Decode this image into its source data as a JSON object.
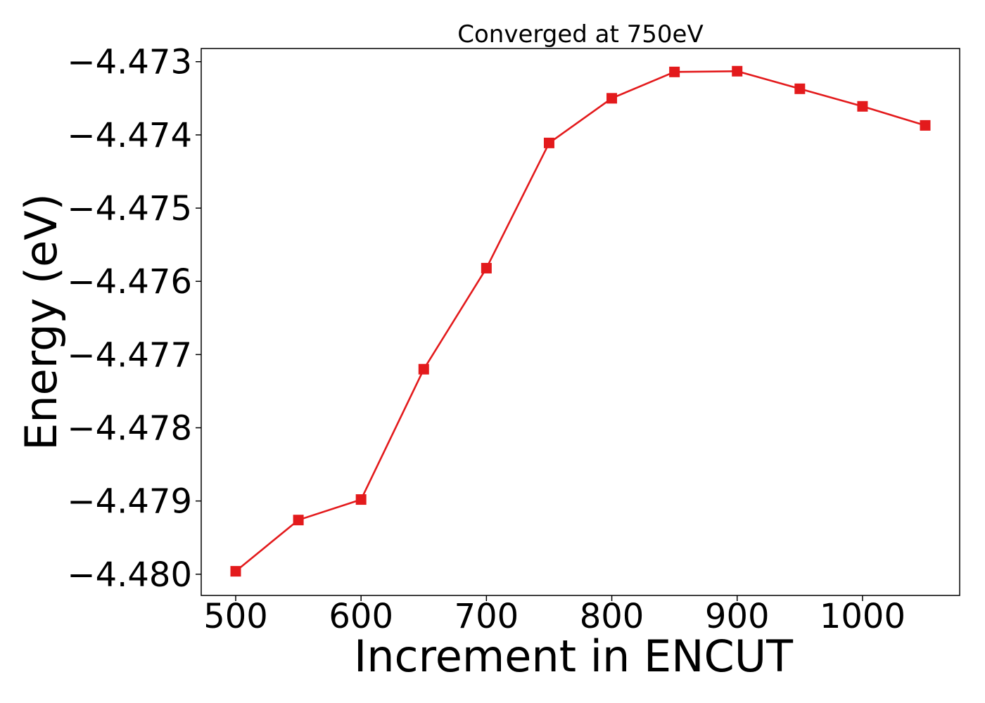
{
  "chart_data": {
    "type": "line",
    "title": "Converged at 750eV",
    "xlabel": "Increment in ENCUT",
    "ylabel": "Energy (eV)",
    "x": [
      500,
      550,
      600,
      650,
      700,
      750,
      800,
      850,
      900,
      950,
      1000,
      1050
    ],
    "series": [
      {
        "values": [
          -4.47996,
          -4.47926,
          -4.47898,
          -4.4772,
          -4.47582,
          -4.47411,
          -4.4735,
          -4.47314,
          -4.47313,
          -4.47337,
          -4.47361,
          -4.47387
        ],
        "color": "#e31a1c",
        "marker": "square"
      }
    ],
    "xticks": [
      500,
      600,
      700,
      800,
      900,
      1000
    ],
    "xtick_labels": [
      "500",
      "600",
      "700",
      "800",
      "900",
      "1000"
    ],
    "yticks": [
      -4.48,
      -4.479,
      -4.478,
      -4.477,
      -4.476,
      -4.475,
      -4.474,
      -4.473
    ],
    "ytick_labels": [
      "−4.480",
      "−4.479",
      "−4.478",
      "−4.477",
      "−4.476",
      "−4.475",
      "−4.474",
      "−4.473"
    ],
    "xlim": [
      472.5,
      1077.5
    ],
    "ylim": [
      -4.48029,
      -4.47282
    ],
    "grid": false,
    "legend": "none"
  }
}
